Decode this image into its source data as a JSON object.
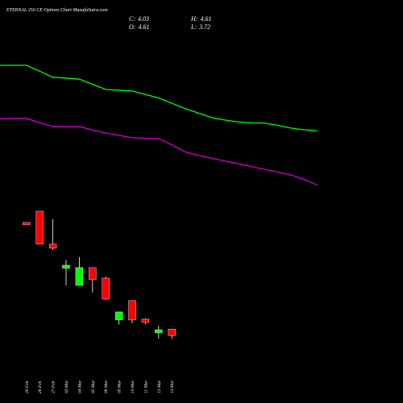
{
  "chart_data": {
    "type": "candlestick",
    "title": "ETERNAL 250 CE Options Chart MunafaSutra.com",
    "readout": [
      {
        "label": "C:",
        "value": 4.03
      },
      {
        "label": "H:",
        "value": 4.61
      },
      {
        "label": "O:",
        "value": 4.61
      },
      {
        "label": "L:",
        "value": 3.72
      }
    ],
    "categories": [
      null,
      null,
      "20 Feb",
      "26 Feb",
      "27 Feb",
      "02 Mar",
      "04 Mar",
      "05 Mar",
      "06 Mar",
      "09 Mar",
      "10 Mar",
      "11 Mar",
      "12 Mar",
      "13 Mar",
      null,
      null,
      null,
      null,
      null,
      null,
      null,
      null,
      null,
      null,
      null
    ],
    "open": [
      null,
      null,
      14.13,
      15.14,
      12.19,
      10.03,
      8.51,
      10.1,
      9.16,
      5.42,
      7.15,
      5.49,
      4.27,
      4.61,
      null,
      null,
      null,
      null,
      null,
      null,
      null,
      null,
      null,
      null,
      null
    ],
    "high": [
      null,
      null,
      14.13,
      15.14,
      14.42,
      10.75,
      11.03,
      10.1,
      9.31,
      6.14,
      7.15,
      5.56,
      4.91,
      4.61,
      null,
      null,
      null,
      null,
      null,
      null,
      null,
      null,
      null,
      null,
      null
    ],
    "low": [
      null,
      null,
      13.92,
      12.19,
      11.68,
      8.51,
      8.51,
      7.87,
      7.22,
      4.99,
      5.13,
      5.06,
      3.76,
      3.72,
      null,
      null,
      null,
      null,
      null,
      null,
      null,
      null,
      null,
      null,
      null
    ],
    "close": [
      null,
      null,
      13.92,
      12.19,
      11.83,
      10.31,
      10.1,
      9.02,
      7.29,
      6.14,
      5.42,
      5.2,
      4.55,
      4.03,
      null,
      null,
      null,
      null,
      null,
      null,
      null,
      null,
      null,
      null,
      null
    ],
    "up_color": "#00ff00",
    "down_color": "#ff0000",
    "lines": [
      {
        "color": "#00ff00",
        "values": [
          28.17,
          28.17,
          28.17,
          27.64,
          27.1,
          27.02,
          26.93,
          26.47,
          26.01,
          25.94,
          25.87,
          25.57,
          25.24,
          24.78,
          24.31,
          23.9,
          23.5,
          23.28,
          23.11,
          23.03,
          23.0,
          22.81,
          22.56,
          22.41,
          22.31
        ]
      },
      {
        "color": "#cc00cc",
        "values": [
          23.42,
          23.42,
          23.42,
          23.06,
          22.7,
          22.7,
          22.69,
          22.4,
          22.12,
          21.91,
          21.7,
          21.65,
          21.62,
          21.06,
          20.44,
          20.12,
          19.87,
          19.63,
          19.38,
          19.13,
          18.88,
          18.64,
          18.38,
          17.97,
          17.48
        ]
      }
    ],
    "ylim": [
      -2,
      34
    ]
  }
}
